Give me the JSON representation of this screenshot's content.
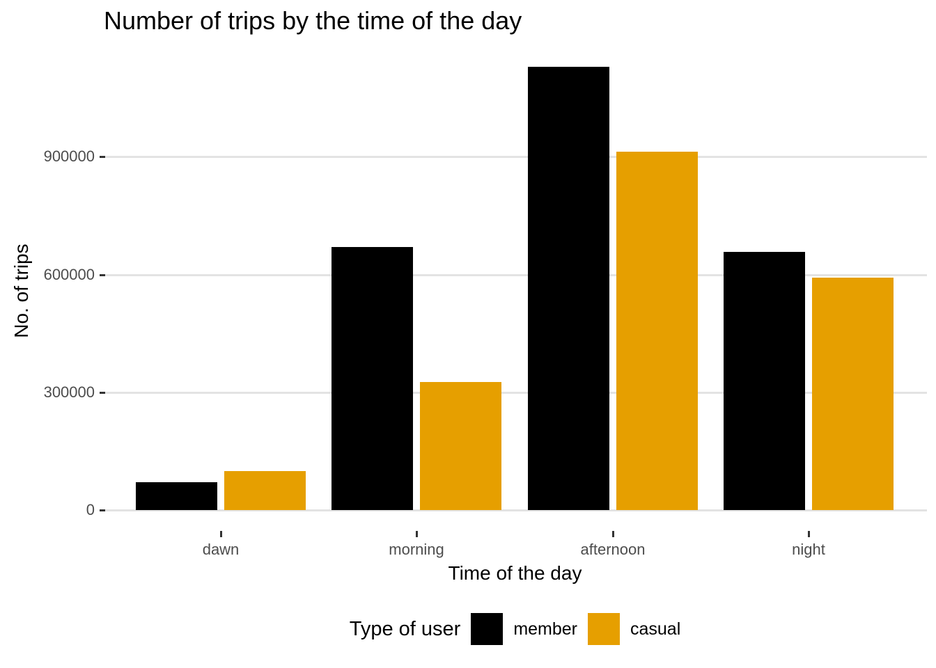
{
  "chart_data": {
    "type": "bar",
    "title": "Number of trips by the time of the day",
    "xlabel": "Time of the day",
    "ylabel": "No. of trips",
    "legend_title": "Type of user",
    "legend_position": "bottom",
    "grid": "major-horizontal-only",
    "categories": [
      "dawn",
      "morning",
      "afternoon",
      "night"
    ],
    "series": [
      {
        "name": "member",
        "color": "#000000",
        "values": [
          71000,
          670000,
          1130000,
          658000
        ]
      },
      {
        "name": "casual",
        "color": "#E69F00",
        "values": [
          99000,
          327000,
          913000,
          592000
        ]
      }
    ],
    "yticks": [
      0,
      300000,
      600000,
      900000
    ],
    "ytick_labels": [
      "0",
      "300000",
      "600000",
      "900000"
    ],
    "ylim": [
      0,
      1186000
    ]
  },
  "colors": {
    "background": "#FFFFFF",
    "gridline": "#E3E3E3",
    "tick_mark": "#333333",
    "tick_label": "#4D4D4D",
    "text": "#000000",
    "member_fill": "#000000",
    "casual_fill": "#E69F00"
  }
}
